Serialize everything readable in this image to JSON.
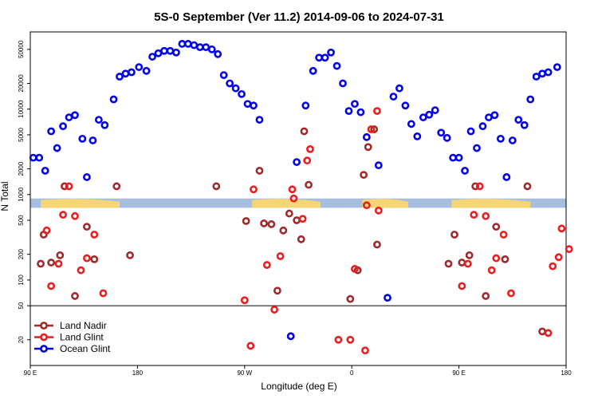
{
  "chart_data": {
    "type": "scatter",
    "title": "5S-0 September (Ver 11.2)   2014-09-06 to 2024-07-31",
    "xlabel": "Longitude (deg E)",
    "ylabel": "N Total",
    "xlim": [
      90,
      450
    ],
    "ylim": [
      10,
      80000
    ],
    "yscale": "log",
    "x_ticks": [
      {
        "value": 90,
        "label": "90 E"
      },
      {
        "value": 162,
        "label": "180"
      },
      {
        "value": 234,
        "label": "90 W"
      },
      {
        "value": 306,
        "label": "0"
      },
      {
        "value": 378,
        "label": "90 E"
      },
      {
        "value": 450,
        "label": "180"
      }
    ],
    "y_ticks": [
      {
        "value": 20,
        "label": "20"
      },
      {
        "value": 50,
        "label": "50"
      },
      {
        "value": 100,
        "label": "100"
      },
      {
        "value": 200,
        "label": "200"
      },
      {
        "value": 500,
        "label": "500"
      },
      {
        "value": 1000,
        "label": "1000"
      },
      {
        "value": 2000,
        "label": "2000"
      },
      {
        "value": 5000,
        "label": "5000"
      },
      {
        "value": 10000,
        "label": "10000"
      },
      {
        "value": 20000,
        "label": "20000"
      },
      {
        "value": 50000,
        "label": "50000"
      }
    ],
    "legend_position": "bottom-left",
    "colors": {
      "land_band": "#a7bee0",
      "land_mass": "#f5d673"
    },
    "series": [
      {
        "name": "Land Nadir",
        "color": "#a0292c",
        "points": [
          [
            97,
            155
          ],
          [
            99,
            340
          ],
          [
            104,
            160
          ],
          [
            110,
            195
          ],
          [
            113,
            1250
          ],
          [
            120,
            65
          ],
          [
            128,
            420
          ],
          [
            133,
            175
          ],
          [
            148,
            1250
          ],
          [
            157,
            195
          ],
          [
            215,
            1250
          ],
          [
            235,
            490
          ],
          [
            244,
            1900
          ],
          [
            247,
            460
          ],
          [
            252,
            450
          ],
          [
            256,
            75
          ],
          [
            260,
            380
          ],
          [
            264,
            600
          ],
          [
            269,
            500
          ],
          [
            272,
            300
          ],
          [
            274,
            5500
          ],
          [
            277,
            1300
          ],
          [
            305,
            60
          ],
          [
            310,
            130
          ],
          [
            314,
            1700
          ],
          [
            317,
            3600
          ],
          [
            321,
            5800
          ],
          [
            323,
            260
          ],
          [
            371,
            155
          ],
          [
            375,
            340
          ],
          [
            380,
            160
          ],
          [
            385,
            195
          ],
          [
            389,
            1250
          ],
          [
            396,
            65
          ],
          [
            403,
            420
          ],
          [
            409,
            175
          ],
          [
            424,
            1250
          ],
          [
            434,
            25
          ]
        ]
      },
      {
        "name": "Land Glint",
        "color": "#ee1c1c",
        "points": [
          [
            101,
            380
          ],
          [
            104,
            85
          ],
          [
            109,
            155
          ],
          [
            112,
            580
          ],
          [
            116,
            1250
          ],
          [
            120,
            560
          ],
          [
            124,
            130
          ],
          [
            128,
            180
          ],
          [
            133,
            340
          ],
          [
            139,
            70
          ],
          [
            234,
            58
          ],
          [
            238,
            17
          ],
          [
            240,
            1150
          ],
          [
            249,
            150
          ],
          [
            254,
            45
          ],
          [
            258,
            190
          ],
          [
            266,
            1150
          ],
          [
            267,
            900
          ],
          [
            273,
            520
          ],
          [
            276,
            2500
          ],
          [
            278,
            3400
          ],
          [
            297,
            20
          ],
          [
            305,
            20
          ],
          [
            308,
            135
          ],
          [
            315,
            15
          ],
          [
            316,
            750
          ],
          [
            319,
            5800
          ],
          [
            323,
            9500
          ],
          [
            324,
            650
          ],
          [
            380,
            85
          ],
          [
            384,
            155
          ],
          [
            388,
            580
          ],
          [
            392,
            1250
          ],
          [
            396,
            560
          ],
          [
            400,
            130
          ],
          [
            403,
            180
          ],
          [
            408,
            340
          ],
          [
            413,
            70
          ],
          [
            438,
            24
          ],
          [
            441,
            145
          ],
          [
            445,
            185
          ],
          [
            447,
            400
          ],
          [
            452,
            230
          ]
        ]
      },
      {
        "name": "Ocean Glint",
        "color": "#0000ee",
        "points": [
          [
            92,
            2700
          ],
          [
            96,
            2700
          ],
          [
            100,
            1900
          ],
          [
            104,
            5500
          ],
          [
            108,
            3500
          ],
          [
            112,
            6300
          ],
          [
            116,
            8000
          ],
          [
            120,
            8500
          ],
          [
            125,
            4500
          ],
          [
            128,
            1600
          ],
          [
            132,
            4300
          ],
          [
            136,
            7500
          ],
          [
            140,
            6500
          ],
          [
            146,
            13000
          ],
          [
            150,
            24000
          ],
          [
            154,
            26000
          ],
          [
            158,
            27000
          ],
          [
            163,
            31000
          ],
          [
            168,
            28000
          ],
          [
            172,
            41000
          ],
          [
            176,
            45000
          ],
          [
            180,
            48000
          ],
          [
            184,
            48000
          ],
          [
            188,
            46000
          ],
          [
            192,
            58000
          ],
          [
            196,
            58000
          ],
          [
            200,
            56000
          ],
          [
            204,
            53000
          ],
          [
            208,
            53000
          ],
          [
            212,
            50000
          ],
          [
            216,
            44000
          ],
          [
            220,
            25000
          ],
          [
            224,
            20000
          ],
          [
            228,
            17500
          ],
          [
            232,
            15000
          ],
          [
            236,
            11500
          ],
          [
            240,
            11000
          ],
          [
            244,
            7500
          ],
          [
            265,
            22
          ],
          [
            269,
            2400
          ],
          [
            275,
            11000
          ],
          [
            280,
            28000
          ],
          [
            284,
            40000
          ],
          [
            288,
            40000
          ],
          [
            292,
            46000
          ],
          [
            296,
            32000
          ],
          [
            300,
            20000
          ],
          [
            304,
            9500
          ],
          [
            308,
            11500
          ],
          [
            312,
            9200
          ],
          [
            316,
            4700
          ],
          [
            324,
            2200
          ],
          [
            330,
            62
          ],
          [
            334,
            14000
          ],
          [
            338,
            17500
          ],
          [
            342,
            11000
          ],
          [
            346,
            6700
          ],
          [
            350,
            4800
          ],
          [
            354,
            8000
          ],
          [
            358,
            8600
          ],
          [
            362,
            9700
          ],
          [
            366,
            5300
          ],
          [
            370,
            4600
          ],
          [
            374,
            2700
          ],
          [
            378,
            2700
          ],
          [
            382,
            1900
          ],
          [
            386,
            5500
          ],
          [
            390,
            3500
          ],
          [
            394,
            6300
          ],
          [
            398,
            8000
          ],
          [
            402,
            8500
          ],
          [
            406,
            4500
          ],
          [
            410,
            1600
          ],
          [
            414,
            4300
          ],
          [
            418,
            7500
          ],
          [
            422,
            6500
          ],
          [
            426,
            13000
          ],
          [
            430,
            24000
          ],
          [
            434,
            26000
          ],
          [
            438,
            27000
          ],
          [
            444,
            31000
          ]
        ]
      }
    ]
  }
}
